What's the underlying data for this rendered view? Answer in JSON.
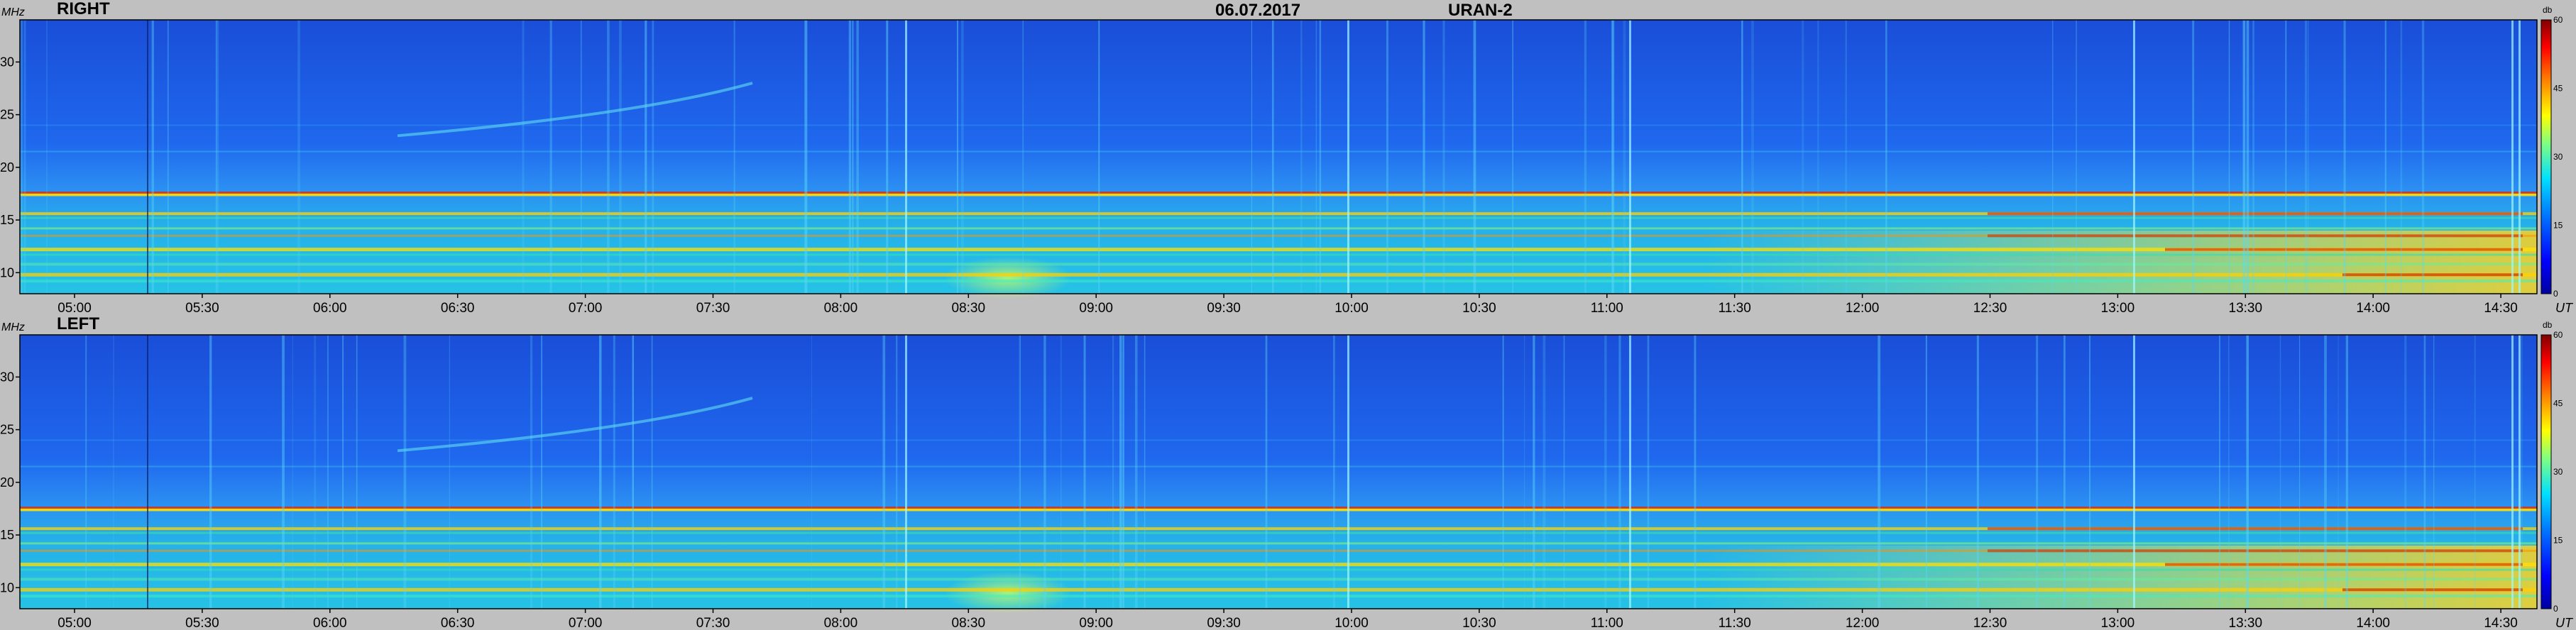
{
  "header": {
    "date": "06.07.2017",
    "instrument": "URAN-2"
  },
  "chart_data": [
    {
      "type": "heatmap",
      "panel": "RIGHT",
      "title": "RIGHT",
      "ylabel": "MHz",
      "xlabel": "UT",
      "ylim": [
        8,
        34
      ],
      "y_ticks": [
        10,
        15,
        20,
        25,
        30
      ],
      "x_ticks": [
        "05:00",
        "05:30",
        "06:00",
        "06:30",
        "07:00",
        "07:30",
        "08:00",
        "08:30",
        "09:00",
        "09:30",
        "10:00",
        "10:30",
        "11:00",
        "11:30",
        "12:00",
        "12:30",
        "13:00",
        "13:30",
        "14:00",
        "14:30"
      ],
      "colorbar": {
        "label": "db",
        "min": 0,
        "max": 60,
        "ticks": [
          0,
          15,
          30,
          45,
          60
        ]
      }
    },
    {
      "type": "heatmap",
      "panel": "LEFT",
      "title": "LEFT",
      "ylabel": "MHz",
      "xlabel": "UT",
      "ylim": [
        8,
        34
      ],
      "y_ticks": [
        10,
        15,
        20,
        25,
        30
      ],
      "x_ticks": [
        "05:00",
        "05:30",
        "06:00",
        "06:30",
        "07:00",
        "07:30",
        "08:00",
        "08:30",
        "09:00",
        "09:30",
        "10:00",
        "10:30",
        "11:00",
        "11:30",
        "12:00",
        "12:30",
        "13:00",
        "13:30",
        "14:00",
        "14:30"
      ],
      "colorbar": {
        "label": "db",
        "min": 0,
        "max": 60,
        "ticks": [
          0,
          15,
          30,
          45,
          60
        ]
      }
    }
  ]
}
